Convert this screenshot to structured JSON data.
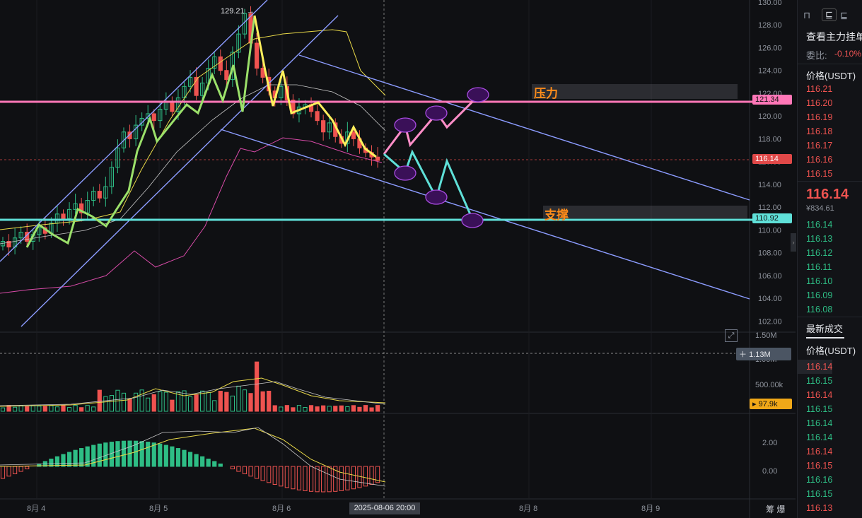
{
  "chart": {
    "y_ticks": [
      "130.00",
      "128.00",
      "126.00",
      "124.00",
      "122.00",
      "120.00",
      "118.00",
      "116.00",
      "114.00",
      "112.00",
      "110.00",
      "108.00",
      "106.00",
      "104.00",
      "102.00"
    ],
    "x_ticks": [
      "8月 4",
      "8月 5",
      "8月 6",
      "8月 8",
      "8月 9"
    ],
    "crosshair_date": "2025-08-06 20:00",
    "high_marker": "129.21",
    "resistance_price": "121.34",
    "support_price": "110.92",
    "current_price_tag": "116.14",
    "annotation_resistance": "压力",
    "annotation_support": "支撑",
    "volume_ticks": [
      "1.50M",
      "1.00M",
      "500.00k"
    ],
    "volume_hover": "1.13M",
    "volume_ma_tag": "97.9k",
    "macd_ticks": [
      "2.00",
      "0.00"
    ],
    "bottom_right_labels": "筹  爆",
    "colors": {
      "up": "#2ebd85",
      "down": "#ef5350",
      "resistance": "#ff77b7",
      "support": "#5fe0d8",
      "channel": "#8c9cff",
      "zigzag": "#ffef5c"
    }
  },
  "panel": {
    "title": "查看主力挂单",
    "ratio_label": "委比:",
    "ratio_value": "-0.10%",
    "price_header": "价格(USDT)",
    "asks": [
      "116.21",
      "116.20",
      "116.19",
      "116.18",
      "116.17",
      "116.16",
      "116.15"
    ],
    "last_price": "116.14",
    "fiat_price": "¥834.61",
    "bids": [
      "116.14",
      "116.13",
      "116.12",
      "116.11",
      "116.10",
      "116.09",
      "116.08"
    ],
    "trades_header": "最新成交",
    "trades_price_header": "价格(USDT)",
    "trades": [
      {
        "p": "116.14",
        "d": "down"
      },
      {
        "p": "116.15",
        "d": "up"
      },
      {
        "p": "116.14",
        "d": "down"
      },
      {
        "p": "116.15",
        "d": "up"
      },
      {
        "p": "116.14",
        "d": "up"
      },
      {
        "p": "116.14",
        "d": "up"
      },
      {
        "p": "116.14",
        "d": "down"
      },
      {
        "p": "116.15",
        "d": "down"
      },
      {
        "p": "116.16",
        "d": "up"
      },
      {
        "p": "116.15",
        "d": "up"
      },
      {
        "p": "116.13",
        "d": "down"
      }
    ]
  }
}
